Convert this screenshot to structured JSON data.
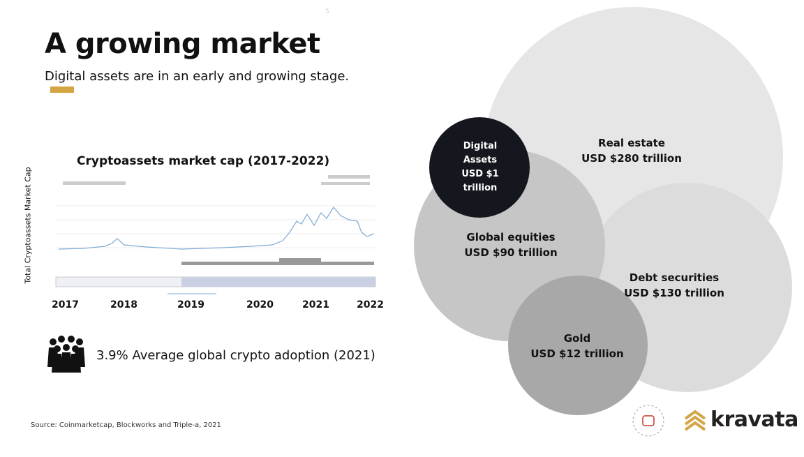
{
  "header": {
    "title": "A growing market",
    "subtitle": "Digital assets are in an early and growing stage.",
    "page_number": "5"
  },
  "chart_panel": {
    "title": "Cryptoassets market cap (2017-2022)",
    "y_label": "Total Cryptoassets Market Cap",
    "years": [
      "2017",
      "2018",
      "2019",
      "2020",
      "2021",
      "2022"
    ]
  },
  "adoption": "3.9% Average global crypto adoption (2021)",
  "bubbles": [
    {
      "label": "Real estate",
      "value": "USD $280 trillion"
    },
    {
      "label": "Debt securities",
      "value": "USD $130 trillion"
    },
    {
      "label": "Global equities",
      "value": "USD $90 trillion"
    },
    {
      "label": "Gold",
      "value": "USD $12 trillion"
    },
    {
      "label": "Digital Assets",
      "value": "USD $1 trillion"
    }
  ],
  "source": "Source: Coinmarketcap, Blockworks and Triple-a, 2021",
  "brand": "kravata"
}
